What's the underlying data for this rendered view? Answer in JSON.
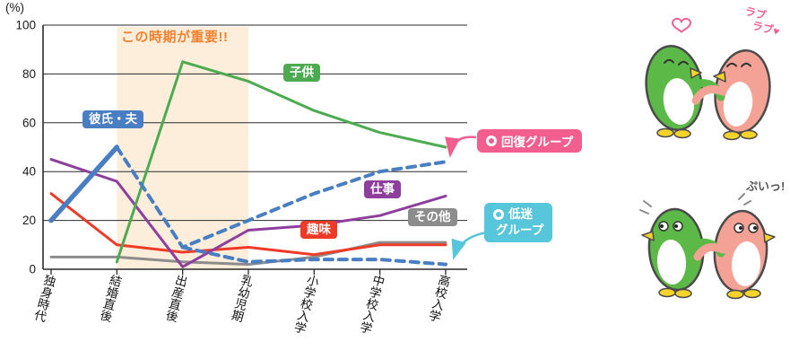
{
  "colors": {
    "green": "#4cab51",
    "blue": "#4a7ec2",
    "purple": "#8e3f9e",
    "red": "#ee3b28",
    "gray": "#8c8c8c",
    "pink": "#f25f8f",
    "cyan": "#57c5da",
    "orange": "#f0822f",
    "band": "#fdeedc",
    "pgreen": "#5cb947",
    "ppink": "#f4a196",
    "beak": "#f6d32a",
    "outline": "#4a4a4a"
  },
  "chart": {
    "badges": {
      "kodomo": "子供",
      "kareshi": "彼氏・夫",
      "shigoto": "仕事",
      "shumi": "趣味",
      "sonota": "その他"
    },
    "callouts": {
      "recovery": "回復グループ",
      "slump_top": "低迷",
      "slump_bottom": "グループ"
    }
  },
  "decor": {
    "love_line1": "ラブ",
    "love_line2": "ラブ♥",
    "pui": "ぷいっ!"
  },
  "chart_data": {
    "type": "line",
    "unit": "(%)",
    "categories": [
      "独身時代",
      "結婚直後",
      "出産直後",
      "乳幼児期",
      "小学校入学",
      "中学校入学",
      "高校入学"
    ],
    "ylim": [
      0,
      100
    ],
    "yticks": [
      0,
      20,
      40,
      60,
      80,
      100
    ],
    "grid": true,
    "highlight_span": {
      "from_index": 1,
      "to_index": 3,
      "label": "この時期が重要!!"
    },
    "series": [
      {
        "name": "その他",
        "color_key": "gray",
        "dash": false,
        "width": 3,
        "values": [
          5,
          5,
          3,
          2,
          5,
          11,
          11
        ]
      },
      {
        "name": "趣味",
        "color_key": "red",
        "dash": false,
        "width": 3,
        "values": [
          31,
          10,
          7,
          9,
          6,
          10,
          10
        ]
      },
      {
        "name": "仕事",
        "color_key": "purple",
        "dash": false,
        "width": 3,
        "values": [
          45,
          36,
          1,
          16,
          18,
          22,
          30
        ]
      },
      {
        "name": "子供",
        "color_key": "green",
        "dash": false,
        "width": 3,
        "values": [
          null,
          3,
          85,
          77,
          65,
          56,
          50
        ]
      },
      {
        "name": "彼氏・夫（低迷グループ）",
        "color_key": "blue",
        "dash": true,
        "width": 4,
        "values": [
          null,
          null,
          9,
          3,
          4,
          4,
          2
        ]
      },
      {
        "name": "彼氏・夫（回復グループ）",
        "color_key": "blue",
        "dash": true,
        "width": 4,
        "values": [
          null,
          50,
          9,
          20,
          31,
          40,
          44
        ]
      },
      {
        "name": "彼氏・夫",
        "color_key": "blue",
        "dash": false,
        "width": 5.5,
        "values": [
          20,
          50,
          null,
          null,
          null,
          null,
          null
        ]
      }
    ]
  }
}
